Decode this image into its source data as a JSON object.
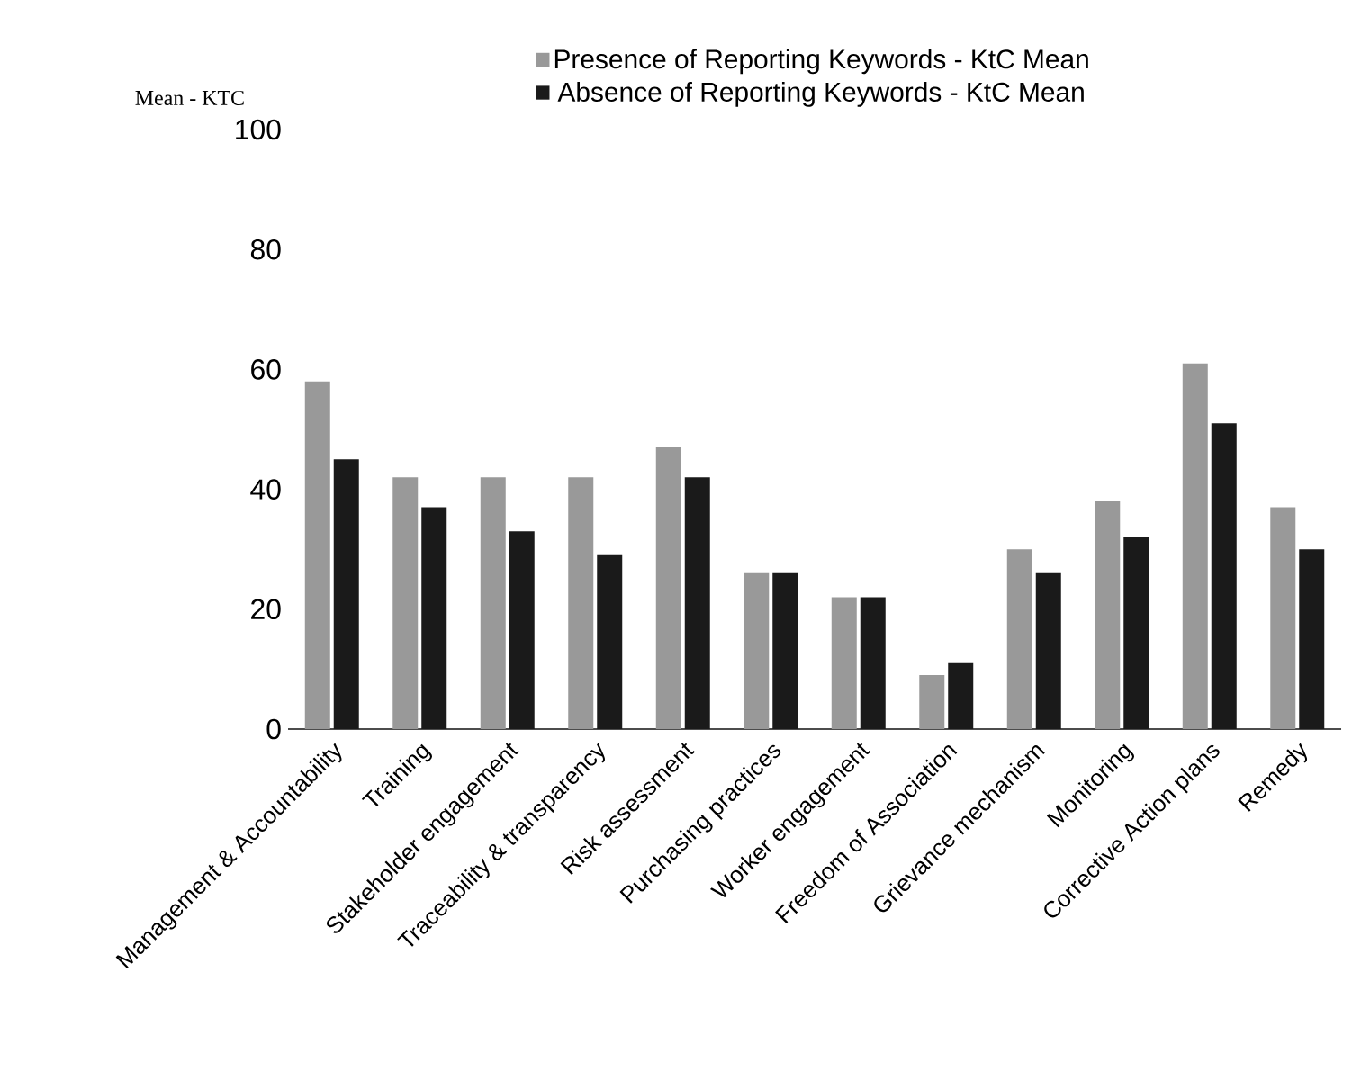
{
  "chart_data": {
    "type": "bar",
    "ylabel": "Mean - KTC",
    "categories": [
      "Management & Accountability",
      "Training",
      "Stakeholder engagement",
      "Traceability & transparency",
      "Risk assessment",
      "Purchasing practices",
      "Worker engagement",
      "Freedom of Association",
      "Grievance mechanism",
      "Monitoring",
      "Corrective Action plans",
      "Remedy"
    ],
    "series": [
      {
        "name": "Presence of Reporting Keywords - KtC Mean",
        "color": "#999999",
        "values": [
          58,
          42,
          42,
          42,
          47,
          26,
          22,
          9,
          30,
          38,
          61,
          37
        ]
      },
      {
        "name": "Absence of Reporting Keywords - KtC Mean",
        "color": "#1a1a1a",
        "values": [
          45,
          37,
          33,
          29,
          42,
          26,
          22,
          11,
          26,
          32,
          51,
          30
        ]
      }
    ],
    "ylim": [
      0,
      100
    ],
    "yticks": [
      0,
      20,
      40,
      60,
      80,
      100
    ],
    "legend": "top"
  }
}
